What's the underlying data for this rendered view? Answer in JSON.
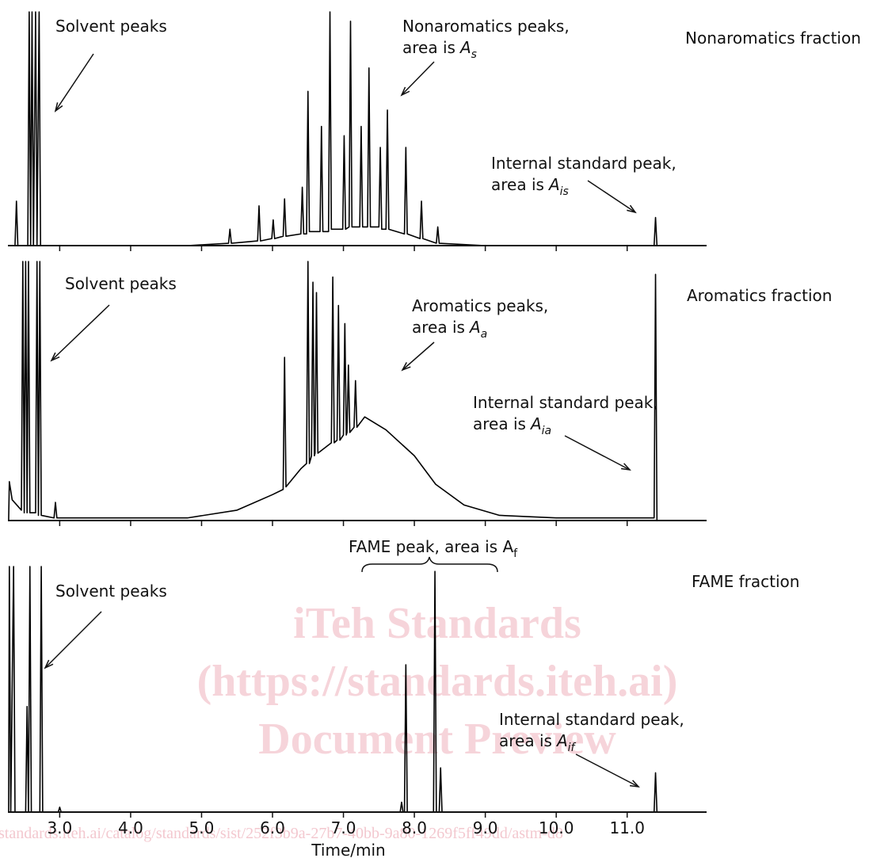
{
  "chart_data": [
    {
      "type": "line",
      "title": "Nonaromatics fraction",
      "color": "#000000",
      "xlim": [
        2.27,
        12.12
      ],
      "ylim": [
        0,
        100
      ],
      "x": [
        2.28,
        2.37,
        2.39,
        2.41,
        2.55,
        2.57,
        2.59,
        2.61,
        2.63,
        2.66,
        2.68,
        2.71,
        2.73,
        4.8,
        5.38,
        5.4,
        5.42,
        5.79,
        5.81,
        5.83,
        5.99,
        6.01,
        6.03,
        6.15,
        6.17,
        6.19,
        6.4,
        6.42,
        6.44,
        6.48,
        6.5,
        6.52,
        6.67,
        6.69,
        6.71,
        6.79,
        6.81,
        6.83,
        6.99,
        7.01,
        7.03,
        7.08,
        7.1,
        7.12,
        7.23,
        7.25,
        7.27,
        7.34,
        7.36,
        7.38,
        7.5,
        7.52,
        7.54,
        7.6,
        7.62,
        7.64,
        7.86,
        7.88,
        7.9,
        8.08,
        8.1,
        8.12,
        8.31,
        8.33,
        8.35,
        9.0,
        11.38,
        11.4,
        11.42,
        12.12
      ],
      "series": [
        {
          "values": [
            0,
            0,
            19,
            0,
            0,
            100,
            0,
            100,
            0,
            100,
            0,
            100,
            0,
            0,
            1,
            7,
            1,
            2,
            17,
            2,
            3,
            11,
            3,
            4,
            20,
            4,
            5,
            25,
            5,
            5,
            66,
            6,
            6,
            51,
            6,
            6,
            100,
            7,
            7,
            47,
            7,
            8,
            96,
            8,
            8,
            51,
            8,
            8,
            76,
            8,
            8,
            42,
            7,
            7,
            58,
            7,
            5,
            42,
            5,
            3,
            19,
            3,
            1,
            8,
            1,
            0,
            0,
            12,
            0,
            0
          ]
        }
      ],
      "annotations": [
        {
          "lines": [
            "Solvent peaks"
          ]
        },
        {
          "lines": [
            "Nonaromatics peaks,",
            "area is"
          ],
          "symbol": "A",
          "subscript": "s"
        },
        {
          "lines": [
            "Internal standard peak,",
            "area is"
          ],
          "symbol": "A",
          "subscript": "is"
        }
      ]
    },
    {
      "type": "line",
      "title": "Aromatics fraction",
      "color": "#000000",
      "xlim": [
        2.27,
        12.12
      ],
      "ylim": [
        0,
        100
      ],
      "x": [
        2.28,
        2.29,
        2.33,
        2.46,
        2.48,
        2.5,
        2.52,
        2.54,
        2.56,
        2.58,
        2.66,
        2.68,
        2.7,
        2.72,
        2.74,
        2.92,
        2.94,
        2.96,
        4.8,
        5.5,
        6.0,
        6.15,
        6.17,
        6.19,
        6.4,
        6.48,
        6.5,
        6.52,
        6.55,
        6.57,
        6.59,
        6.6,
        6.62,
        6.64,
        6.83,
        6.85,
        6.87,
        6.91,
        6.93,
        6.95,
        7.0,
        7.02,
        7.04,
        7.05,
        7.07,
        7.09,
        7.15,
        7.17,
        7.19,
        7.3,
        7.6,
        8.0,
        8.3,
        8.7,
        9.2,
        10,
        11.38,
        11.4,
        11.42,
        12.12
      ],
      "series": [
        {
          "values": [
            0,
            15,
            8,
            4,
            100,
            3,
            100,
            3,
            100,
            3,
            3,
            100,
            2,
            100,
            2,
            1,
            7,
            1,
            1,
            4,
            10,
            12,
            63,
            13,
            20,
            22,
            100,
            22,
            25,
            92,
            25,
            26,
            88,
            26,
            30,
            94,
            30,
            31,
            83,
            31,
            33,
            76,
            33,
            34,
            60,
            34,
            36,
            54,
            36,
            40,
            35,
            25,
            14,
            6,
            2,
            1,
            1,
            95,
            0,
            0
          ]
        }
      ],
      "annotations": [
        {
          "lines": [
            "Solvent peaks"
          ]
        },
        {
          "lines": [
            "Aromatics peaks,",
            "area is"
          ],
          "symbol": "A",
          "subscript": "a"
        },
        {
          "lines": [
            "Internal standard peak,",
            "area is"
          ],
          "symbol": "A",
          "subscript": "ia"
        }
      ]
    },
    {
      "type": "line",
      "title": "FAME fraction",
      "color": "#000000",
      "xlim": [
        2.27,
        12.12
      ],
      "ylim": [
        0,
        100
      ],
      "xlabel": "Time/min",
      "xticks": [
        {
          "value": 3,
          "label": "3.0"
        },
        {
          "value": 4,
          "label": "4.0"
        },
        {
          "value": 5,
          "label": "5.0"
        },
        {
          "value": 6,
          "label": "6.0"
        },
        {
          "value": 7,
          "label": "7.0"
        },
        {
          "value": 8,
          "label": "8.0"
        },
        {
          "value": 9,
          "label": "9.0"
        },
        {
          "value": 10,
          "label": "10.0"
        },
        {
          "value": 11,
          "label": "11.0"
        }
      ],
      "x": [
        2.28,
        2.29,
        2.31,
        2.35,
        2.37,
        2.52,
        2.54,
        2.56,
        2.58,
        2.6,
        2.72,
        2.74,
        2.76,
        2.98,
        3.0,
        3.02,
        7.8,
        7.82,
        7.84,
        7.86,
        7.88,
        7.9,
        8.27,
        8.29,
        8.31,
        8.35,
        8.37,
        8.39,
        11.38,
        11.4,
        11.42,
        12.12
      ],
      "series": [
        {
          "values": [
            0,
            100,
            0,
            100,
            0,
            0,
            43,
            0,
            100,
            0,
            0,
            100,
            0,
            0,
            2,
            0,
            0,
            4,
            0,
            0,
            60,
            0,
            0,
            98,
            0,
            0,
            18,
            0,
            0,
            16,
            0,
            0
          ]
        }
      ],
      "annotations": [
        {
          "lines": [
            "Solvent peaks"
          ]
        },
        {
          "lines": [
            "Internal standard peak,",
            "area is"
          ],
          "symbol": "A",
          "subscript": "if"
        }
      ],
      "bracket_label": {
        "text": "FAME peak, area is A",
        "subscript": "f"
      }
    }
  ],
  "watermark": {
    "lines": [
      "iTeh Standards",
      "(https://standards.iteh.ai)",
      "Document Preview"
    ],
    "url": "standards.iteh.ai/catalog/standards/sist/252f3b9a-27b7-40bb-9a80-1269f5ff49dd/astm-d8"
  }
}
